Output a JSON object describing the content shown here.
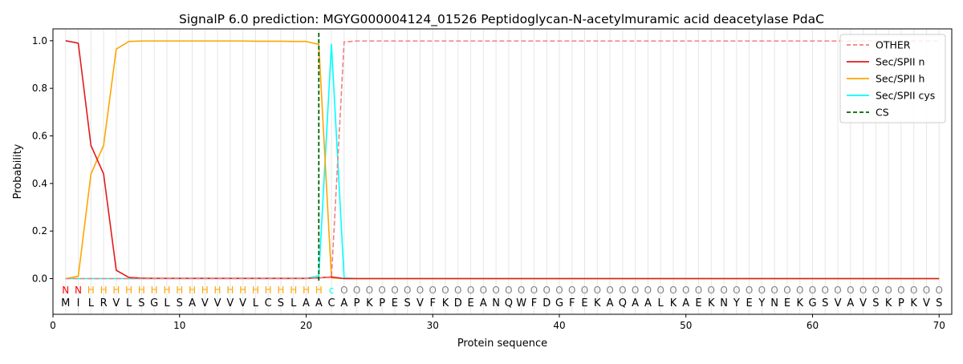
{
  "chart_data": {
    "type": "line",
    "title": "SignalP 6.0 prediction: MGYG000004124_01526 Peptidoglycan-N-acetylmuramic acid deacetylase PdaC",
    "xlabel": "Protein sequence",
    "ylabel": "Probability",
    "xlim": [
      0,
      71
    ],
    "ylim": [
      -0.15,
      1.05
    ],
    "xticks": [
      0,
      10,
      20,
      30,
      40,
      50,
      60,
      70
    ],
    "yticks": [
      0.0,
      0.2,
      0.4,
      0.6,
      0.8,
      1.0
    ],
    "xtick_labels": [
      "0",
      "10",
      "20",
      "30",
      "40",
      "50",
      "60",
      "70"
    ],
    "ytick_labels": [
      "0.0",
      "0.2",
      "0.4",
      "0.6",
      "0.8",
      "1.0"
    ],
    "legend_position": "top-right",
    "grid": "vertical lines at each residue",
    "sequence": [
      "M",
      "I",
      "L",
      "R",
      "V",
      "L",
      "S",
      "G",
      "L",
      "S",
      "A",
      "V",
      "V",
      "V",
      "V",
      "L",
      "C",
      "S",
      "L",
      "A",
      "A",
      "C",
      "A",
      "P",
      "K",
      "P",
      "E",
      "S",
      "V",
      "F",
      "K",
      "D",
      "E",
      "A",
      "N",
      "Q",
      "W",
      "F",
      "D",
      "G",
      "F",
      "E",
      "K",
      "A",
      "Q",
      "A",
      "A",
      "L",
      "K",
      "A",
      "E",
      "K",
      "N",
      "Y",
      "E",
      "Y",
      "N",
      "E",
      "K",
      "G",
      "S",
      "V",
      "A",
      "V",
      "S",
      "K",
      "P",
      "K",
      "V",
      "S"
    ],
    "labels": [
      "N",
      "N",
      "H",
      "H",
      "H",
      "H",
      "H",
      "H",
      "H",
      "H",
      "H",
      "H",
      "H",
      "H",
      "H",
      "H",
      "H",
      "H",
      "H",
      "H",
      "H",
      "c",
      "O",
      "O",
      "O",
      "O",
      "O",
      "O",
      "O",
      "O",
      "O",
      "O",
      "O",
      "O",
      "O",
      "O",
      "O",
      "O",
      "O",
      "O",
      "O",
      "O",
      "O",
      "O",
      "O",
      "O",
      "O",
      "O",
      "O",
      "O",
      "O",
      "O",
      "O",
      "O",
      "O",
      "O",
      "O",
      "O",
      "O",
      "O",
      "O",
      "O",
      "O",
      "O",
      "O",
      "O",
      "O",
      "O",
      "O",
      "O"
    ],
    "label_colors": {
      "N": "#ff0000",
      "H": "#ffa500",
      "c": "#00ffff",
      "O": "#808080"
    },
    "x": [
      1,
      2,
      3,
      4,
      5,
      6,
      7,
      8,
      9,
      10,
      11,
      12,
      13,
      14,
      15,
      16,
      17,
      18,
      19,
      20,
      21,
      22,
      23,
      24,
      25,
      26,
      27,
      28,
      29,
      30,
      31,
      32,
      33,
      34,
      35,
      36,
      37,
      38,
      39,
      40,
      41,
      42,
      43,
      44,
      45,
      46,
      47,
      48,
      49,
      50,
      51,
      52,
      53,
      54,
      55,
      56,
      57,
      58,
      59,
      60,
      61,
      62,
      63,
      64,
      65,
      66,
      67,
      68,
      69,
      70
    ],
    "series": [
      {
        "name": "OTHER",
        "color": "#f08080",
        "dash": "dashed",
        "values": [
          0,
          0,
          0,
          0,
          0,
          0,
          0,
          0,
          0,
          0,
          0,
          0,
          0,
          0,
          0,
          0,
          0,
          0,
          0,
          0,
          0.003,
          0.005,
          0.995,
          0.999,
          0.999,
          0.999,
          0.999,
          0.999,
          0.999,
          0.999,
          0.999,
          0.999,
          0.999,
          0.999,
          0.999,
          0.999,
          0.999,
          0.999,
          0.999,
          0.999,
          0.999,
          0.999,
          0.999,
          0.999,
          0.999,
          0.999,
          0.999,
          0.999,
          0.999,
          0.999,
          0.999,
          0.999,
          0.999,
          0.999,
          0.999,
          0.999,
          0.999,
          0.999,
          0.999,
          0.999,
          0.999,
          0.999,
          0.999,
          0.999,
          0.999,
          0.999,
          0.999,
          0.999,
          0.999,
          0.999
        ]
      },
      {
        "name": "Sec/SPII n",
        "color": "#e31a1c",
        "dash": "solid",
        "values": [
          1.0,
          0.99,
          0.56,
          0.44,
          0.035,
          0.005,
          0.002,
          0.001,
          0.001,
          0.001,
          0.001,
          0.001,
          0.001,
          0.001,
          0.001,
          0.001,
          0.001,
          0.001,
          0.001,
          0.001,
          0.003,
          0.007,
          0,
          0,
          0,
          0,
          0,
          0,
          0,
          0,
          0,
          0,
          0,
          0,
          0,
          0,
          0,
          0,
          0,
          0,
          0,
          0,
          0,
          0,
          0,
          0,
          0,
          0,
          0,
          0,
          0,
          0,
          0,
          0,
          0,
          0,
          0,
          0,
          0,
          0,
          0,
          0,
          0,
          0,
          0,
          0,
          0,
          0,
          0,
          0
        ]
      },
      {
        "name": "Sec/SPII h",
        "color": "#ffa500",
        "dash": "solid",
        "values": [
          0,
          0.01,
          0.44,
          0.56,
          0.965,
          0.997,
          0.999,
          0.999,
          0.999,
          0.999,
          0.999,
          0.999,
          0.999,
          0.999,
          0.999,
          0.998,
          0.998,
          0.998,
          0.997,
          0.997,
          0.985,
          0.003,
          0,
          0,
          0,
          0,
          0,
          0,
          0,
          0,
          0,
          0,
          0,
          0,
          0,
          0,
          0,
          0,
          0,
          0,
          0,
          0,
          0,
          0,
          0,
          0,
          0,
          0,
          0,
          0,
          0,
          0,
          0,
          0,
          0,
          0,
          0,
          0,
          0,
          0,
          0,
          0,
          0,
          0,
          0,
          0,
          0,
          0,
          0,
          0
        ]
      },
      {
        "name": "Sec/SPII cys",
        "color": "#00ffff",
        "dash": "solid",
        "values": [
          0,
          0,
          0,
          0,
          0,
          0,
          0,
          0,
          0,
          0,
          0,
          0,
          0,
          0,
          0,
          0,
          0,
          0,
          0,
          0,
          0.012,
          0.985,
          0.003,
          0,
          0,
          0,
          0,
          0,
          0,
          0,
          0,
          0,
          0,
          0,
          0,
          0,
          0,
          0,
          0,
          0,
          0,
          0,
          0,
          0,
          0,
          0,
          0,
          0,
          0,
          0,
          0,
          0,
          0,
          0,
          0,
          0,
          0,
          0,
          0,
          0,
          0,
          0,
          0,
          0,
          0,
          0,
          0,
          0,
          0,
          0
        ]
      },
      {
        "name": "CS",
        "color": "#006400",
        "dash": "dashed",
        "type": "vline",
        "x_value": 21
      }
    ]
  }
}
